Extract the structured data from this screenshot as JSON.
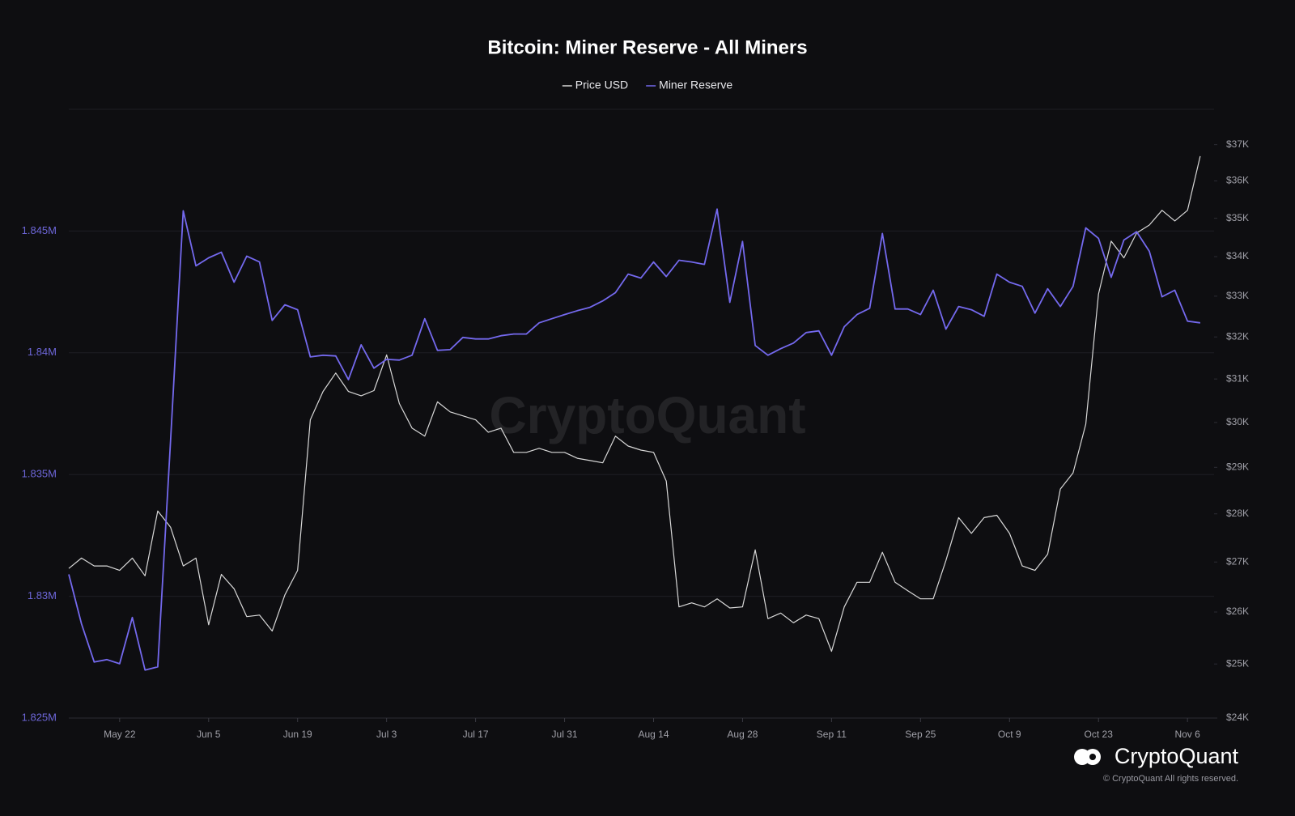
{
  "chart_data": {
    "type": "line",
    "title": "Bitcoin: Miner Reserve - All Miners",
    "watermark": "CryptoQuant",
    "brand": "CryptoQuant",
    "copyright": "© CryptoQuant All rights reserved.",
    "legend": "top",
    "grid": true,
    "y2log": true,
    "categories": [
      "May 14",
      "May 16",
      "May 18",
      "May 20",
      "May 22",
      "May 24",
      "May 26",
      "May 28",
      "May 30",
      "Jun 1",
      "Jun 3",
      "Jun 5",
      "Jun 7",
      "Jun 9",
      "Jun 11",
      "Jun 13",
      "Jun 15",
      "Jun 17",
      "Jun 19",
      "Jun 21",
      "Jun 23",
      "Jun 25",
      "Jun 27",
      "Jun 29",
      "Jul 1",
      "Jul 3",
      "Jul 5",
      "Jul 7",
      "Jul 9",
      "Jul 11",
      "Jul 13",
      "Jul 15",
      "Jul 17",
      "Jul 19",
      "Jul 21",
      "Jul 23",
      "Jul 25",
      "Jul 27",
      "Jul 29",
      "Jul 31",
      "Aug 2",
      "Aug 4",
      "Aug 6",
      "Aug 8",
      "Aug 10",
      "Aug 12",
      "Aug 14",
      "Aug 16",
      "Aug 18",
      "Aug 20",
      "Aug 22",
      "Aug 24",
      "Aug 26",
      "Aug 28",
      "Aug 30",
      "Sep 1",
      "Sep 3",
      "Sep 5",
      "Sep 7",
      "Sep 9",
      "Sep 11",
      "Sep 13",
      "Sep 15",
      "Sep 17",
      "Sep 19",
      "Sep 21",
      "Sep 23",
      "Sep 25",
      "Sep 27",
      "Sep 29",
      "Oct 1",
      "Oct 3",
      "Oct 5",
      "Oct 7",
      "Oct 9",
      "Oct 11",
      "Oct 13",
      "Oct 15",
      "Oct 17",
      "Oct 19",
      "Oct 21",
      "Oct 23",
      "Oct 25",
      "Oct 27",
      "Oct 29",
      "Oct 31",
      "Nov 2",
      "Nov 4",
      "Nov 6",
      "Nov 8"
    ],
    "xticks": [
      "May 22",
      "Jun 5",
      "Jun 19",
      "Jul 3",
      "Jul 17",
      "Jul 31",
      "Aug 14",
      "Aug 28",
      "Sep 11",
      "Sep 25",
      "Oct 9",
      "Oct 23",
      "Nov 6"
    ],
    "ylim": [
      1825000,
      1850000
    ],
    "yticks": [
      {
        "value": 1825000,
        "label": "1.825M"
      },
      {
        "value": 1830000,
        "label": "1.83M"
      },
      {
        "value": 1835000,
        "label": "1.835M"
      },
      {
        "value": 1840000,
        "label": "1.84M"
      },
      {
        "value": 1845000,
        "label": "1.845M"
      }
    ],
    "y2lim": [
      24000,
      38000
    ],
    "y2ticks": [
      {
        "value": 24000,
        "label": "$24K"
      },
      {
        "value": 25000,
        "label": "$25K"
      },
      {
        "value": 26000,
        "label": "$26K"
      },
      {
        "value": 27000,
        "label": "$27K"
      },
      {
        "value": 28000,
        "label": "$28K"
      },
      {
        "value": 29000,
        "label": "$29K"
      },
      {
        "value": 30000,
        "label": "$30K"
      },
      {
        "value": 31000,
        "label": "$31K"
      },
      {
        "value": 32000,
        "label": "$32K"
      },
      {
        "value": 33000,
        "label": "$33K"
      },
      {
        "value": 34000,
        "label": "$34K"
      },
      {
        "value": 35000,
        "label": "$35K"
      },
      {
        "value": 36000,
        "label": "$36K"
      },
      {
        "value": 37000,
        "label": "$37K"
      }
    ],
    "series": [
      {
        "name": "Price USD",
        "color": "#d8d8d8",
        "axis": "y2",
        "values": [
          26870,
          27080,
          26920,
          26920,
          26830,
          27080,
          26720,
          28060,
          27720,
          26920,
          27080,
          25750,
          26750,
          26460,
          25910,
          25940,
          25630,
          26340,
          26830,
          30060,
          30710,
          31140,
          30710,
          30610,
          30730,
          31570,
          30430,
          29870,
          29690,
          30470,
          30240,
          30150,
          30060,
          29780,
          29870,
          29330,
          29330,
          29420,
          29330,
          29330,
          29200,
          29150,
          29100,
          29690,
          29470,
          29380,
          29330,
          28700,
          26100,
          26180,
          26100,
          26260,
          26080,
          26100,
          27250,
          25870,
          25980,
          25790,
          25940,
          25870,
          25240,
          26100,
          26590,
          26590,
          27200,
          26590,
          26420,
          26260,
          26260,
          27030,
          27920,
          27590,
          27920,
          27970,
          27590,
          26920,
          26830,
          27160,
          28530,
          28880,
          29960,
          33050,
          34400,
          33970,
          34610,
          34820,
          35210,
          34930,
          35210,
          36680
        ]
      },
      {
        "name": "Miner Reserve",
        "color": "#7469ee",
        "axis": "y",
        "values": [
          1830900,
          1828870,
          1827300,
          1827400,
          1827230,
          1829130,
          1826970,
          1827100,
          1836370,
          1845830,
          1843570,
          1843900,
          1844130,
          1842900,
          1843970,
          1843730,
          1841330,
          1841970,
          1841770,
          1839830,
          1839900,
          1839870,
          1838900,
          1840330,
          1839370,
          1839730,
          1839700,
          1839900,
          1841400,
          1840100,
          1840130,
          1840630,
          1840570,
          1840570,
          1840700,
          1840770,
          1840770,
          1841230,
          1841400,
          1841570,
          1841730,
          1841870,
          1842130,
          1842470,
          1843230,
          1843070,
          1843730,
          1843130,
          1843800,
          1843730,
          1843630,
          1845900,
          1842070,
          1844570,
          1840300,
          1839900,
          1840170,
          1840400,
          1840830,
          1840900,
          1839900,
          1841070,
          1841570,
          1841830,
          1844900,
          1841800,
          1841800,
          1841570,
          1842570,
          1840970,
          1841900,
          1841770,
          1841500,
          1843230,
          1842900,
          1842730,
          1841630,
          1842630,
          1841900,
          1842730,
          1845130,
          1844700,
          1843100,
          1844630,
          1844970,
          1844170,
          1842300,
          1842570,
          1841300,
          1841230
        ]
      }
    ]
  }
}
